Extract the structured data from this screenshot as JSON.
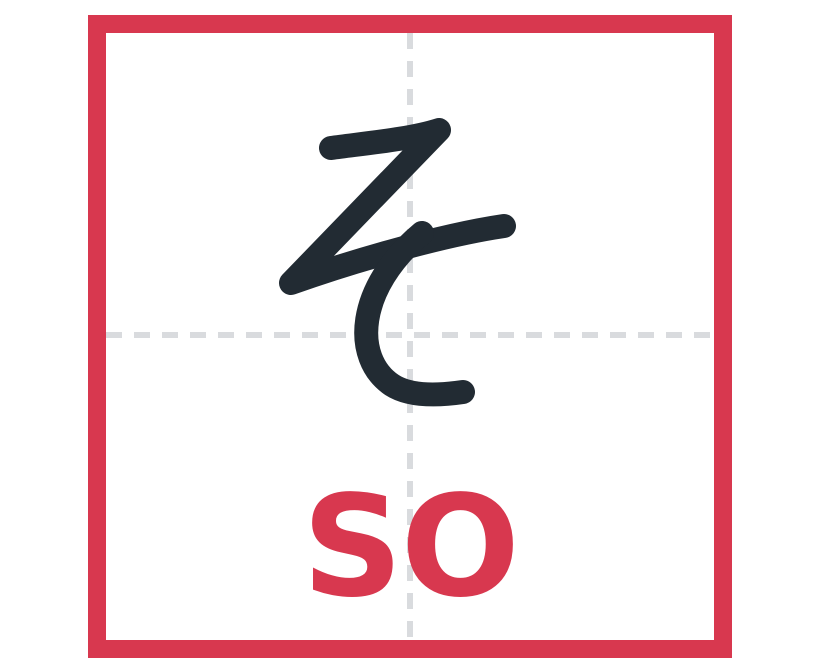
{
  "card": {
    "character": "そ",
    "romaji": "SO"
  },
  "colors": {
    "accent": "#d8384f",
    "ink": "#222b33",
    "guide": "#d9dbde",
    "background": "#ffffff"
  }
}
